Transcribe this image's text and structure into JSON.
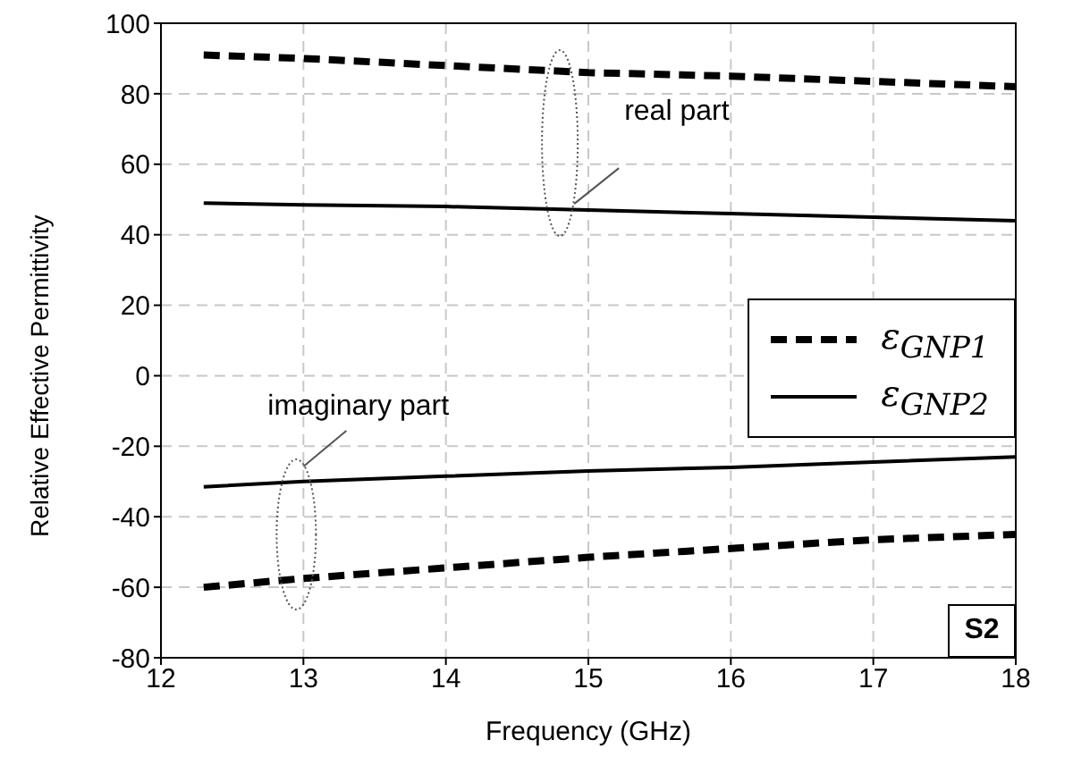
{
  "chart_data": {
    "type": "line",
    "xlabel": "Frequency (GHz)",
    "ylabel": "Relative Effective Permittivity",
    "x": [
      12.3,
      13,
      14,
      15,
      16,
      17,
      18
    ],
    "series": [
      {
        "name": "ε$_{GNP1}$",
        "color": "#000000",
        "line_style": "dashed",
        "values": [
          91,
          90,
          88,
          86,
          85,
          83.5,
          82
        ]
      },
      {
        "name": "ε$_{GNP2}$",
        "color": "#000000",
        "line_style": "solid",
        "values": [
          49,
          48.5,
          48,
          47,
          46,
          45,
          44
        ]
      },
      {
        "color": "#000000",
        "line_style": "dashed",
        "values": [
          -60,
          -57.5,
          -54.5,
          -51.5,
          -49,
          -46.5,
          -45
        ]
      },
      {
        "color": "#000000",
        "line_style": "solid",
        "values": [
          -31.5,
          -30,
          -28.5,
          -27,
          -26,
          -24.5,
          -23
        ]
      }
    ],
    "xlim": [
      12,
      18
    ],
    "xticks": [
      12,
      13,
      14,
      15,
      16,
      17,
      18
    ],
    "ylim": [
      -80,
      100
    ],
    "yticks": [
      -80,
      -60,
      -40,
      -20,
      0,
      20,
      40,
      60,
      80,
      100
    ],
    "grid": true,
    "legend": "right",
    "marker": "none",
    "annotations": [
      "real part",
      "imaginary part",
      "S2"
    ]
  }
}
